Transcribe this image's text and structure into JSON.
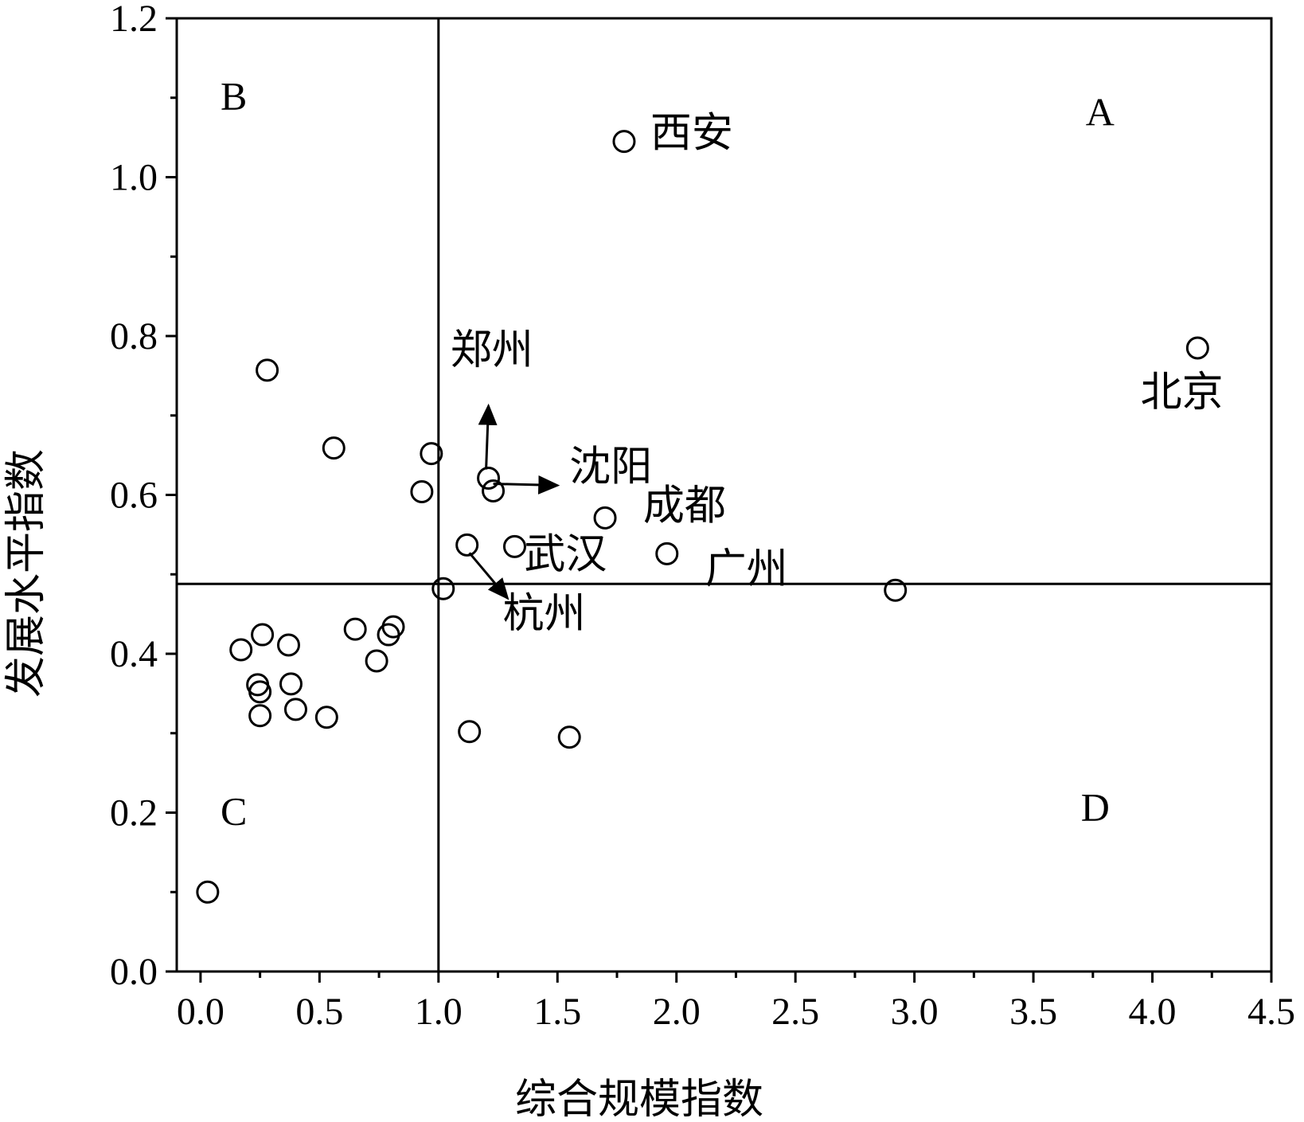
{
  "chart_data": {
    "type": "scatter",
    "xlabel": "综合规模指数",
    "ylabel": "发展水平指数",
    "xlim": [
      -0.1,
      4.5
    ],
    "ylim": [
      0.0,
      1.2
    ],
    "x_ticks": [
      "0.0",
      "0.5",
      "1.0",
      "1.5",
      "2.0",
      "2.5",
      "3.0",
      "3.5",
      "4.0",
      "4.5"
    ],
    "y_ticks": [
      "0.0",
      "0.2",
      "0.4",
      "0.6",
      "0.8",
      "1.0",
      "1.2"
    ],
    "x_tick_values": [
      0,
      0.5,
      1.0,
      1.5,
      2.0,
      2.5,
      3.0,
      3.5,
      4.0,
      4.5
    ],
    "y_tick_values": [
      0,
      0.2,
      0.4,
      0.6,
      0.8,
      1.0,
      1.2
    ],
    "reference_lines": {
      "x": 1.0,
      "y": 0.488
    },
    "grid": false,
    "marker": "open-circle",
    "quadrant_labels": [
      {
        "text": "A",
        "x": 3.78,
        "y": 1.065
      },
      {
        "text": "B",
        "x": 0.14,
        "y": 1.085
      },
      {
        "text": "C",
        "x": 0.14,
        "y": 0.185
      },
      {
        "text": "D",
        "x": 3.76,
        "y": 0.19
      }
    ],
    "points": [
      {
        "x": 1.78,
        "y": 1.045
      },
      {
        "x": 4.19,
        "y": 0.785
      },
      {
        "x": 0.28,
        "y": 0.757
      },
      {
        "x": 0.56,
        "y": 0.659
      },
      {
        "x": 0.97,
        "y": 0.652
      },
      {
        "x": 0.93,
        "y": 0.604
      },
      {
        "x": 1.21,
        "y": 0.621
      },
      {
        "x": 1.23,
        "y": 0.605
      },
      {
        "x": 1.7,
        "y": 0.571
      },
      {
        "x": 1.12,
        "y": 0.537
      },
      {
        "x": 1.32,
        "y": 0.535
      },
      {
        "x": 1.96,
        "y": 0.526
      },
      {
        "x": 1.02,
        "y": 0.482
      },
      {
        "x": 2.92,
        "y": 0.48
      },
      {
        "x": 0.81,
        "y": 0.434
      },
      {
        "x": 0.79,
        "y": 0.424
      },
      {
        "x": 0.65,
        "y": 0.431
      },
      {
        "x": 0.74,
        "y": 0.391
      },
      {
        "x": 0.26,
        "y": 0.424
      },
      {
        "x": 0.37,
        "y": 0.411
      },
      {
        "x": 0.17,
        "y": 0.405
      },
      {
        "x": 0.38,
        "y": 0.362
      },
      {
        "x": 0.24,
        "y": 0.361
      },
      {
        "x": 0.25,
        "y": 0.352
      },
      {
        "x": 0.4,
        "y": 0.33
      },
      {
        "x": 0.25,
        "y": 0.322
      },
      {
        "x": 0.53,
        "y": 0.32
      },
      {
        "x": 1.13,
        "y": 0.302
      },
      {
        "x": 1.55,
        "y": 0.295
      },
      {
        "x": 0.03,
        "y": 0.1
      }
    ],
    "point_labels": [
      {
        "text": "西安",
        "x": 1.89,
        "y": 1.038
      },
      {
        "text": "北京",
        "x": 3.95,
        "y": 0.712
      },
      {
        "text": "郑州",
        "x": 1.05,
        "y": 0.765
      },
      {
        "text": "沈阳",
        "x": 1.55,
        "y": 0.618
      },
      {
        "text": "成都",
        "x": 1.86,
        "y": 0.569
      },
      {
        "text": "武汉",
        "x": 1.36,
        "y": 0.508
      },
      {
        "text": "广州",
        "x": 2.12,
        "y": 0.489
      },
      {
        "text": "杭州",
        "x": 1.27,
        "y": 0.433
      }
    ],
    "arrows": [
      {
        "from": [
          1.2,
          0.632
        ],
        "to": [
          1.21,
          0.712
        ]
      },
      {
        "from": [
          1.23,
          0.614
        ],
        "to": [
          1.5,
          0.612
        ]
      },
      {
        "from": [
          1.13,
          0.527
        ],
        "to": [
          1.29,
          0.47
        ]
      }
    ]
  }
}
